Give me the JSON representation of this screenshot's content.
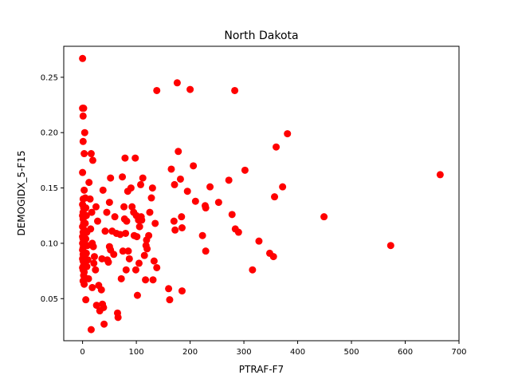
{
  "chart_data": {
    "type": "scatter",
    "title": "North Dakota",
    "xlabel": "PTRAF-F7",
    "ylabel": "DEMOGIDX_5-F15",
    "xlim": [
      -35,
      700
    ],
    "ylim": [
      0.012,
      0.278
    ],
    "xticks": [
      0,
      100,
      200,
      300,
      400,
      500,
      600,
      700
    ],
    "yticks": [
      0.05,
      0.1,
      0.15,
      0.2,
      0.25
    ],
    "grid": false,
    "marker_color": "#ff0000",
    "series": [
      {
        "points": [
          [
            0,
            0.267
          ],
          [
            0,
            0.222
          ],
          [
            1,
            0.215
          ],
          [
            1,
            0.192
          ],
          [
            0,
            0.164
          ],
          [
            2,
            0.222
          ],
          [
            3,
            0.181
          ],
          [
            4,
            0.2
          ],
          [
            3,
            0.148
          ],
          [
            1,
            0.14
          ],
          [
            5,
            0.141
          ],
          [
            0,
            0.135
          ],
          [
            2,
            0.132
          ],
          [
            1,
            0.128
          ],
          [
            0,
            0.125
          ],
          [
            1,
            0.122
          ],
          [
            2,
            0.118
          ],
          [
            0,
            0.115
          ],
          [
            3,
            0.112
          ],
          [
            1,
            0.11
          ],
          [
            2,
            0.108
          ],
          [
            0,
            0.106
          ],
          [
            1,
            0.104
          ],
          [
            3,
            0.102
          ],
          [
            0,
            0.1
          ],
          [
            2,
            0.098
          ],
          [
            1,
            0.096
          ],
          [
            0,
            0.094
          ],
          [
            3,
            0.092
          ],
          [
            1,
            0.09
          ],
          [
            2,
            0.088
          ],
          [
            0,
            0.086
          ],
          [
            1,
            0.084
          ],
          [
            3,
            0.082
          ],
          [
            2,
            0.08
          ],
          [
            0,
            0.078
          ],
          [
            1,
            0.076
          ],
          [
            3,
            0.074
          ],
          [
            2,
            0.071
          ],
          [
            4,
            0.069
          ],
          [
            1,
            0.066
          ],
          [
            3,
            0.063
          ],
          [
            6,
            0.132
          ],
          [
            7,
            0.125
          ],
          [
            5,
            0.118
          ],
          [
            8,
            0.11
          ],
          [
            6,
            0.104
          ],
          [
            9,
            0.098
          ],
          [
            7,
            0.091
          ],
          [
            10,
            0.085
          ],
          [
            8,
            0.079
          ],
          [
            11,
            0.068
          ],
          [
            6,
            0.049
          ],
          [
            12,
            0.155
          ],
          [
            14,
            0.14
          ],
          [
            16,
            0.181
          ],
          [
            17,
            0.128
          ],
          [
            19,
            0.175
          ],
          [
            15,
            0.113
          ],
          [
            18,
            0.1
          ],
          [
            20,
            0.097
          ],
          [
            22,
            0.088
          ],
          [
            21,
            0.082
          ],
          [
            24,
            0.076
          ],
          [
            18,
            0.06
          ],
          [
            16,
            0.022
          ],
          [
            25,
            0.133
          ],
          [
            28,
            0.12
          ],
          [
            26,
            0.044
          ],
          [
            30,
            0.062
          ],
          [
            35,
            0.058
          ],
          [
            32,
            0.039
          ],
          [
            37,
            0.045
          ],
          [
            39,
            0.042
          ],
          [
            36,
            0.086
          ],
          [
            40,
            0.027
          ],
          [
            38,
            0.148
          ],
          [
            42,
            0.111
          ],
          [
            45,
            0.128
          ],
          [
            46,
            0.085
          ],
          [
            48,
            0.083
          ],
          [
            50,
            0.097
          ],
          [
            52,
            0.094
          ],
          [
            50,
            0.137
          ],
          [
            52,
            0.159
          ],
          [
            55,
            0.111
          ],
          [
            58,
            0.09
          ],
          [
            60,
            0.124
          ],
          [
            63,
            0.109
          ],
          [
            65,
            0.037
          ],
          [
            66,
            0.033
          ],
          [
            70,
            0.108
          ],
          [
            72,
            0.068
          ],
          [
            74,
            0.16
          ],
          [
            75,
            0.093
          ],
          [
            77,
            0.133
          ],
          [
            78,
            0.122
          ],
          [
            79,
            0.177
          ],
          [
            80,
            0.109
          ],
          [
            81,
            0.076
          ],
          [
            82,
            0.12
          ],
          [
            84,
            0.147
          ],
          [
            85,
            0.093
          ],
          [
            87,
            0.086
          ],
          [
            90,
            0.15
          ],
          [
            92,
            0.133
          ],
          [
            95,
            0.128
          ],
          [
            96,
            0.107
          ],
          [
            98,
            0.177
          ],
          [
            99,
            0.076
          ],
          [
            100,
            0.125
          ],
          [
            101,
            0.106
          ],
          [
            102,
            0.053
          ],
          [
            104,
            0.121
          ],
          [
            105,
            0.082
          ],
          [
            106,
            0.115
          ],
          [
            108,
            0.153
          ],
          [
            109,
            0.124
          ],
          [
            110,
            0.121
          ],
          [
            112,
            0.159
          ],
          [
            115,
            0.089
          ],
          [
            117,
            0.067
          ],
          [
            118,
            0.098
          ],
          [
            119,
            0.103
          ],
          [
            120,
            0.095
          ],
          [
            123,
            0.107
          ],
          [
            125,
            0.128
          ],
          [
            128,
            0.141
          ],
          [
            130,
            0.15
          ],
          [
            131,
            0.067
          ],
          [
            133,
            0.084
          ],
          [
            135,
            0.118
          ],
          [
            138,
            0.078
          ],
          [
            138,
            0.238
          ],
          [
            160,
            0.059
          ],
          [
            162,
            0.049
          ],
          [
            165,
            0.167
          ],
          [
            170,
            0.12
          ],
          [
            171,
            0.153
          ],
          [
            172,
            0.112
          ],
          [
            176,
            0.245
          ],
          [
            178,
            0.183
          ],
          [
            182,
            0.158
          ],
          [
            184,
            0.124
          ],
          [
            185,
            0.114
          ],
          [
            185,
            0.057
          ],
          [
            195,
            0.147
          ],
          [
            200,
            0.239
          ],
          [
            206,
            0.17
          ],
          [
            210,
            0.138
          ],
          [
            223,
            0.107
          ],
          [
            228,
            0.134
          ],
          [
            229,
            0.132
          ],
          [
            229,
            0.093
          ],
          [
            237,
            0.151
          ],
          [
            253,
            0.137
          ],
          [
            272,
            0.157
          ],
          [
            278,
            0.126
          ],
          [
            283,
            0.238
          ],
          [
            284,
            0.113
          ],
          [
            290,
            0.11
          ],
          [
            302,
            0.166
          ],
          [
            316,
            0.076
          ],
          [
            328,
            0.102
          ],
          [
            348,
            0.091
          ],
          [
            355,
            0.088
          ],
          [
            357,
            0.142
          ],
          [
            360,
            0.187
          ],
          [
            372,
            0.151
          ],
          [
            381,
            0.199
          ],
          [
            449,
            0.124
          ],
          [
            573,
            0.098
          ],
          [
            665,
            0.162
          ]
        ]
      }
    ]
  }
}
